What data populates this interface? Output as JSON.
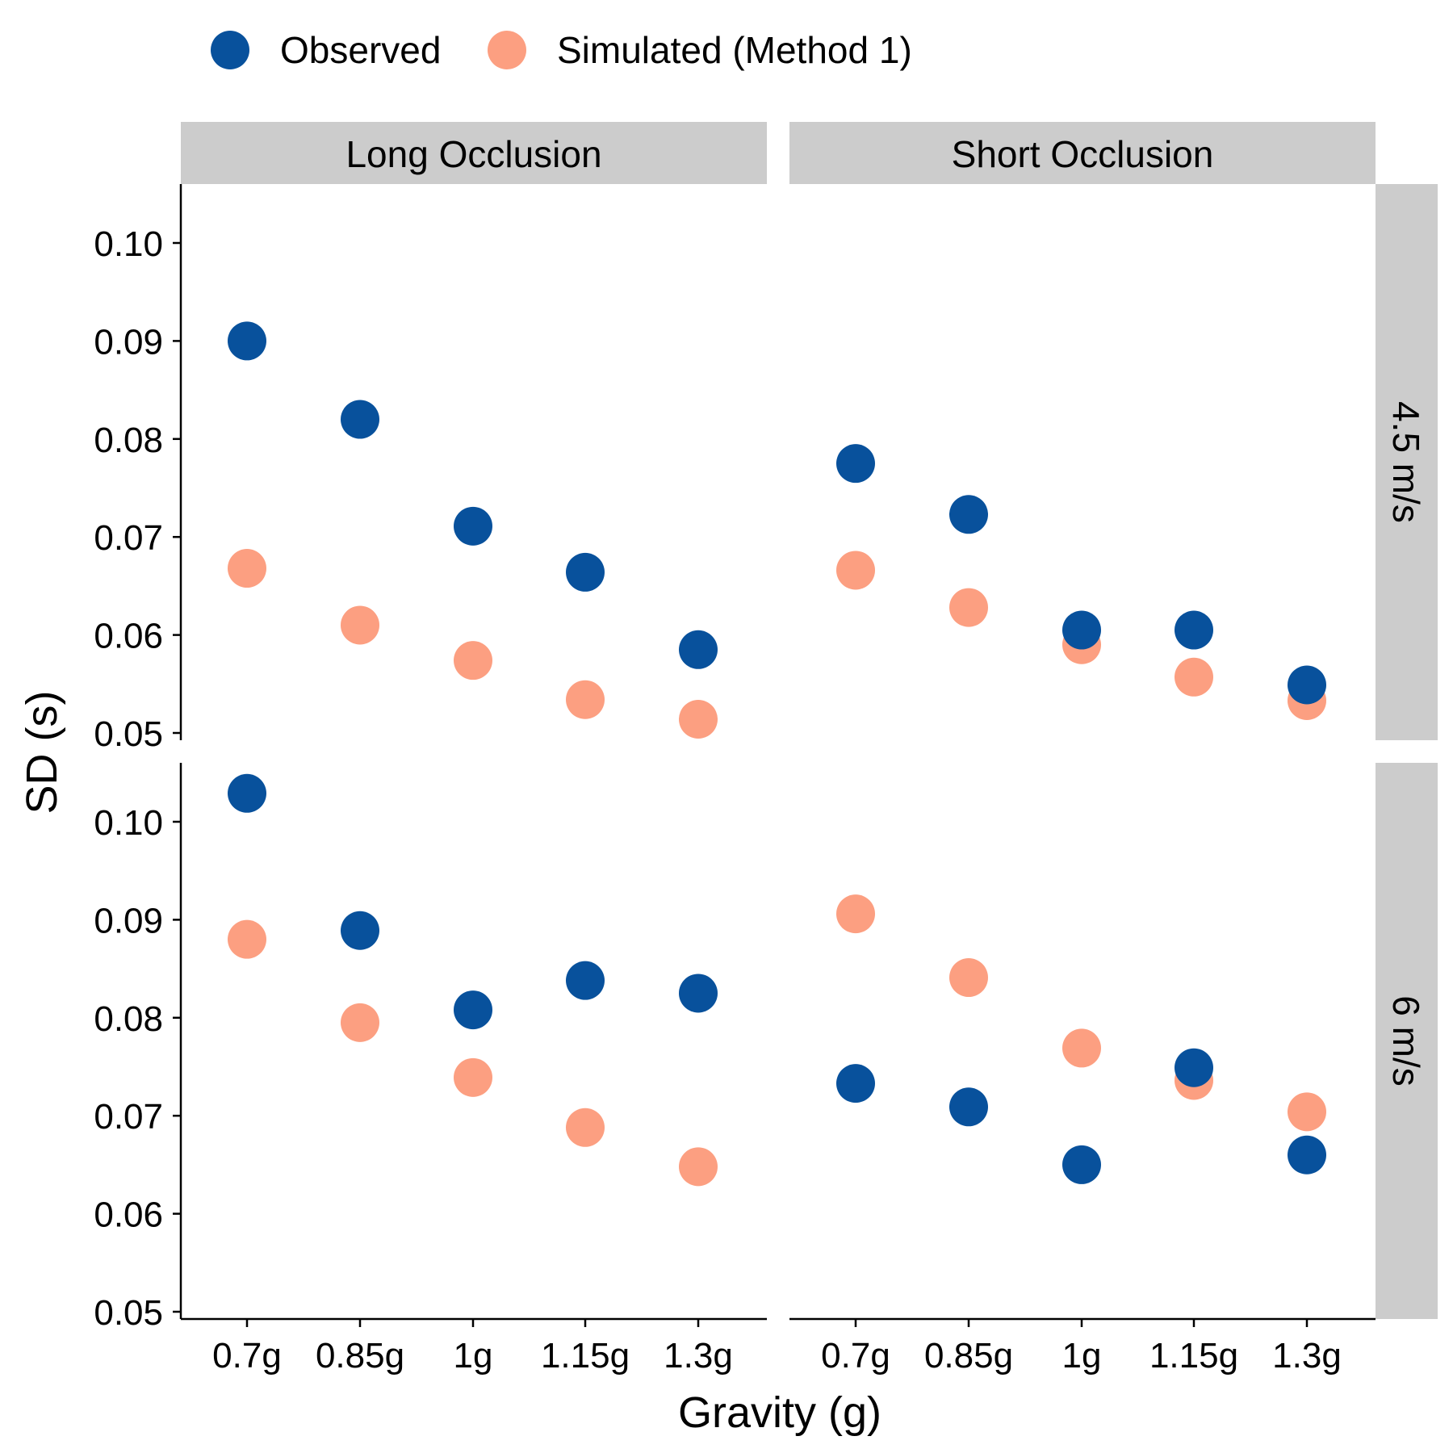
{
  "chart_data": {
    "type": "scatter",
    "xlabel": "Gravity (g)",
    "ylabel": "SD (s)",
    "categories": [
      "0.7g",
      "0.85g",
      "1g",
      "1.15g",
      "1.3g"
    ],
    "ylim": [
      0.05,
      0.105
    ],
    "yticks": [
      "0.05",
      "0.06",
      "0.07",
      "0.08",
      "0.09",
      "0.10"
    ],
    "legend_position": "top-left",
    "grid": false,
    "column_facets": [
      "Long Occlusion",
      "Short Occlusion"
    ],
    "row_facets": [
      "4.5 m/s",
      "6 m/s"
    ],
    "series": [
      {
        "name": "Observed",
        "color": "#08519c"
      },
      {
        "name": "Simulated (Method 1)",
        "color": "#fc9f81"
      }
    ],
    "panels": [
      {
        "column": "Long Occlusion",
        "row": "4.5 m/s",
        "observed": [
          0.09,
          0.082,
          0.0711,
          0.0664,
          0.0585
        ],
        "simulated": [
          0.0668,
          0.061,
          0.0574,
          0.0534,
          0.0514
        ]
      },
      {
        "column": "Short Occlusion",
        "row": "4.5 m/s",
        "observed": [
          0.0775,
          0.0723,
          0.0605,
          0.0605,
          0.0549
        ],
        "simulated": [
          0.0666,
          0.0628,
          0.059,
          0.0557,
          0.0533
        ]
      },
      {
        "column": "Long Occlusion",
        "row": "6 m/s",
        "observed": [
          0.1029,
          0.0889,
          0.0808,
          0.0838,
          0.0825
        ],
        "simulated": [
          0.088,
          0.0795,
          0.0739,
          0.0688,
          0.0648
        ]
      },
      {
        "column": "Short Occlusion",
        "row": "6 m/s",
        "observed": [
          0.0733,
          0.0709,
          0.065,
          0.0749,
          0.066
        ],
        "simulated": [
          0.0906,
          0.0841,
          0.0769,
          0.0736,
          0.0704
        ]
      }
    ]
  }
}
